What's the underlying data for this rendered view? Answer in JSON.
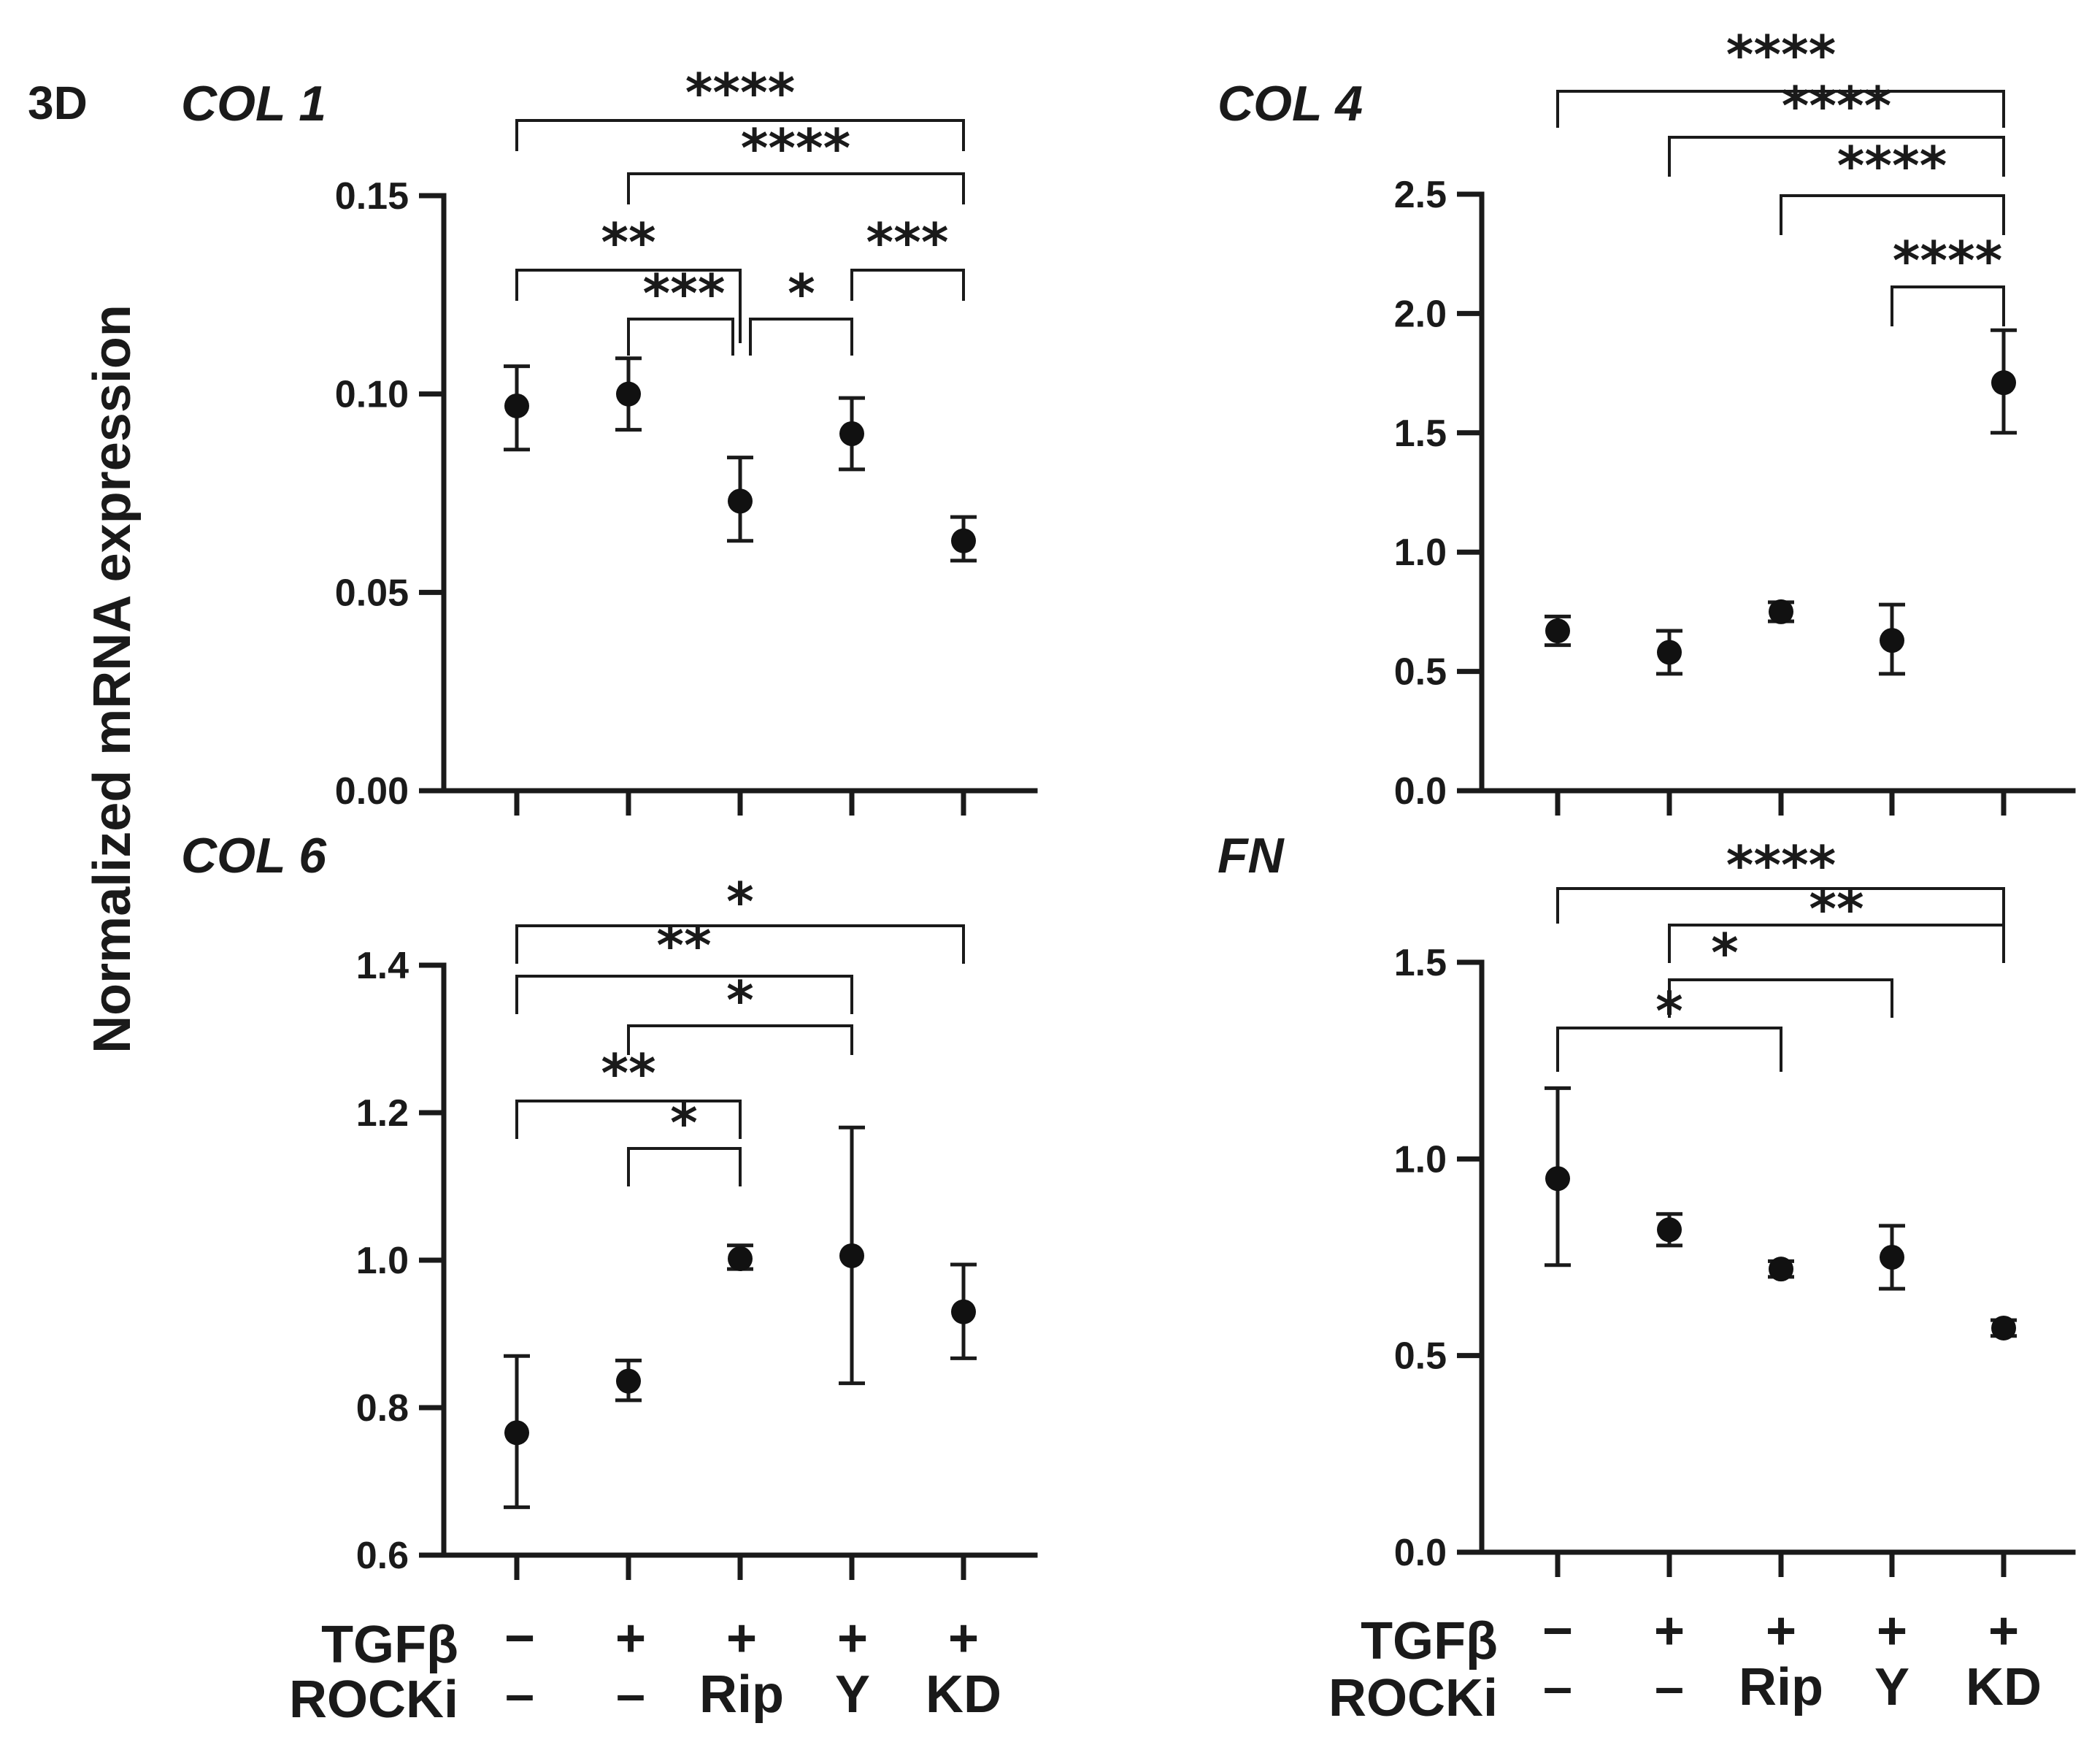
{
  "figure": {
    "panel_label": "3D",
    "y_axis_label": "Normalized  mRNA  expression"
  },
  "conditions": {
    "row1_label": "TGFβ",
    "row2_label": "ROCKi",
    "tgfb": [
      "−",
      "+",
      "+",
      "+",
      "+"
    ],
    "rocki": [
      "–",
      "–",
      "Rip",
      "Y",
      "KD"
    ]
  },
  "chart_data": [
    {
      "type": "scatter",
      "title": "COL 1",
      "categories": [
        "1",
        "2",
        "3",
        "4",
        "5"
      ],
      "values": [
        0.097,
        0.1,
        0.073,
        0.09,
        0.063
      ],
      "err_low": [
        0.086,
        0.091,
        0.063,
        0.081,
        0.058
      ],
      "err_high": [
        0.107,
        0.109,
        0.084,
        0.099,
        0.069
      ],
      "ylim": [
        0,
        0.15
      ],
      "yticks": [
        0.0,
        0.05,
        0.1,
        0.15
      ],
      "ytick_labels": [
        "0.00",
        "0.05",
        "0.10",
        "0.15"
      ],
      "significance": [
        {
          "from": 1,
          "to": 5,
          "label": "****"
        },
        {
          "from": 2,
          "to": 5,
          "label": "****"
        },
        {
          "from": 1,
          "to": 3,
          "label": "**"
        },
        {
          "from": 4,
          "to": 5,
          "label": "***"
        },
        {
          "from": 2,
          "to": 3,
          "label": "***"
        },
        {
          "from": 3,
          "to": 4,
          "label": "*"
        }
      ]
    },
    {
      "type": "scatter",
      "title": "COL 4",
      "categories": [
        "1",
        "2",
        "3",
        "4",
        "5"
      ],
      "values": [
        0.67,
        0.58,
        0.75,
        0.63,
        1.71
      ],
      "err_low": [
        0.61,
        0.49,
        0.71,
        0.49,
        1.5
      ],
      "err_high": [
        0.73,
        0.67,
        0.79,
        0.78,
        1.93
      ],
      "ylim": [
        0,
        2.5
      ],
      "yticks": [
        0.0,
        0.5,
        1.0,
        1.5,
        2.0,
        2.5
      ],
      "ytick_labels": [
        "0.0",
        "0.5",
        "1.0",
        "1.5",
        "2.0",
        "2.5"
      ],
      "significance": [
        {
          "from": 1,
          "to": 5,
          "label": "****"
        },
        {
          "from": 2,
          "to": 5,
          "label": "****"
        },
        {
          "from": 3,
          "to": 5,
          "label": "****"
        },
        {
          "from": 4,
          "to": 5,
          "label": "****"
        }
      ]
    },
    {
      "type": "scatter",
      "title": "COL 6",
      "categories": [
        "1",
        "2",
        "3",
        "4",
        "5"
      ],
      "values": [
        0.766,
        0.836,
        1.002,
        1.006,
        0.93
      ],
      "err_low": [
        0.665,
        0.81,
        0.988,
        0.833,
        0.867
      ],
      "err_high": [
        0.87,
        0.864,
        1.02,
        1.18,
        0.994
      ],
      "ylim": [
        0.6,
        1.4
      ],
      "yticks": [
        0.6,
        0.8,
        1.0,
        1.2,
        1.4
      ],
      "ytick_labels": [
        "0.6",
        "0.8",
        "1.0",
        "1.2",
        "1.4"
      ],
      "significance": [
        {
          "from": 1,
          "to": 5,
          "label": "*"
        },
        {
          "from": 1,
          "to": 4,
          "label": "**"
        },
        {
          "from": 2,
          "to": 4,
          "label": "*"
        },
        {
          "from": 1,
          "to": 3,
          "label": "**"
        },
        {
          "from": 2,
          "to": 3,
          "label": "*"
        }
      ]
    },
    {
      "type": "scatter",
      "title": "FN",
      "categories": [
        "1",
        "2",
        "3",
        "4",
        "5"
      ],
      "values": [
        0.95,
        0.82,
        0.72,
        0.75,
        0.57
      ],
      "err_low": [
        0.73,
        0.78,
        0.7,
        0.67,
        0.55
      ],
      "err_high": [
        1.18,
        0.86,
        0.74,
        0.83,
        0.59
      ],
      "ylim": [
        0,
        1.5
      ],
      "yticks": [
        0.0,
        0.5,
        1.0,
        1.5
      ],
      "ytick_labels": [
        "0.0",
        "0.5",
        "1.0",
        "1.5"
      ],
      "significance": [
        {
          "from": 1,
          "to": 5,
          "label": "****"
        },
        {
          "from": 2,
          "to": 5,
          "label": "**"
        },
        {
          "from": 2,
          "to": 4,
          "label": "*"
        },
        {
          "from": 1,
          "to": 3,
          "label": "*"
        }
      ]
    }
  ]
}
